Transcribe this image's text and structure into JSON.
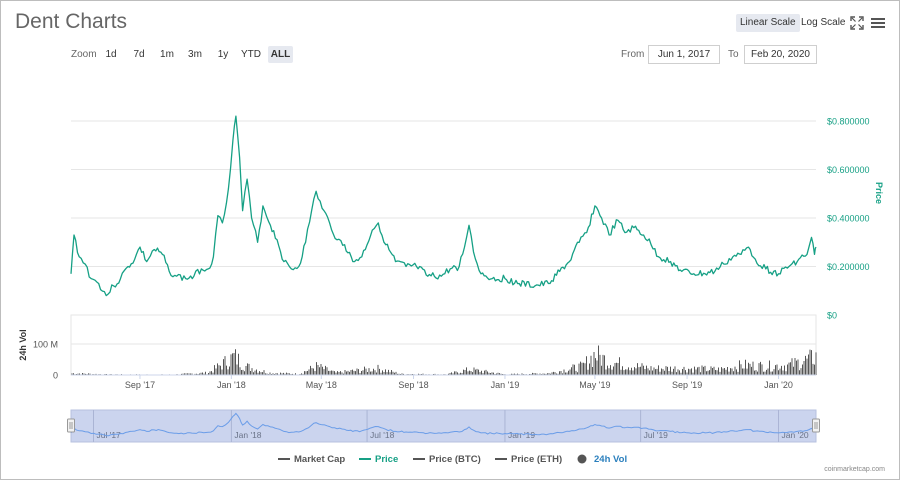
{
  "title": "Dent Charts",
  "scale_buttons": {
    "linear": "Linear Scale",
    "log": "Log Scale",
    "active": "linear"
  },
  "icons": {
    "fullscreen": "fullscreen-icon",
    "menu": "menu-icon"
  },
  "zoom": {
    "label": "Zoom",
    "buttons": [
      "1d",
      "7d",
      "1m",
      "3m",
      "1y",
      "YTD",
      "ALL"
    ],
    "active": "ALL"
  },
  "range": {
    "from_label": "From",
    "from_value": "Jun 1, 2017",
    "to_label": "To",
    "to_value": "Feb 20, 2020"
  },
  "legend": [
    {
      "label": "Market Cap",
      "color": "#555555",
      "marker": "line"
    },
    {
      "label": "Price",
      "color": "#16a085",
      "marker": "line"
    },
    {
      "label": "Price (BTC)",
      "color": "#555555",
      "marker": "line"
    },
    {
      "label": "Price (ETH)",
      "color": "#555555",
      "marker": "line"
    },
    {
      "label": "24h Vol",
      "color": "#555555",
      "marker": "circle"
    }
  ],
  "credit": "coinmarketcap.com",
  "colors": {
    "price": "#16a085",
    "volume": "#555555",
    "navigator_line": "#6b9de8",
    "navigator_fill": "#cbd4ee",
    "grid": "#e6e6e6"
  },
  "chart_data": {
    "type": "line",
    "x_start": "2017-06-01",
    "x_end": "2020-02-20",
    "xaxis_ticks": [
      {
        "label": "Sep '17",
        "date": "2017-09-01"
      },
      {
        "label": "Jan '18",
        "date": "2018-01-01"
      },
      {
        "label": "May '18",
        "date": "2018-05-01"
      },
      {
        "label": "Sep '18",
        "date": "2018-09-01"
      },
      {
        "label": "Jan '19",
        "date": "2019-01-01"
      },
      {
        "label": "May '19",
        "date": "2019-05-01"
      },
      {
        "label": "Sep '19",
        "date": "2019-09-01"
      },
      {
        "label": "Jan '20",
        "date": "2020-01-01"
      }
    ],
    "navigator_ticks": [
      {
        "label": "Jul '17",
        "date": "2017-07-01"
      },
      {
        "label": "Jan '18",
        "date": "2018-01-01"
      },
      {
        "label": "Jul '18",
        "date": "2018-07-01"
      },
      {
        "label": "Jan '19",
        "date": "2019-01-01"
      },
      {
        "label": "Jul '19",
        "date": "2019-07-01"
      },
      {
        "label": "Jan '20",
        "date": "2020-01-01"
      }
    ],
    "price_axis": {
      "label": "Price",
      "min": 0,
      "max": 0.8,
      "ticks": [
        {
          "value": 0,
          "label": "$0"
        },
        {
          "value": 0.2,
          "label": "$0.200000"
        },
        {
          "value": 0.4,
          "label": "$0.400000"
        },
        {
          "value": 0.6,
          "label": "$0.600000"
        },
        {
          "value": 0.8,
          "label": "$0.800000"
        }
      ]
    },
    "volume_axis": {
      "label": "24h Vol",
      "min": 0,
      "max": 100000000,
      "ticks": [
        {
          "value": 0,
          "label": "0"
        },
        {
          "value": 100000000,
          "label": "100 M"
        }
      ]
    },
    "series": [
      {
        "name": "Price",
        "points": [
          [
            "2017-06-01",
            0.17
          ],
          [
            "2017-06-05",
            0.33
          ],
          [
            "2017-06-12",
            0.24
          ],
          [
            "2017-06-20",
            0.21
          ],
          [
            "2017-06-28",
            0.15
          ],
          [
            "2017-07-08",
            0.13
          ],
          [
            "2017-07-18",
            0.08
          ],
          [
            "2017-07-28",
            0.12
          ],
          [
            "2017-08-06",
            0.15
          ],
          [
            "2017-08-16",
            0.2
          ],
          [
            "2017-08-25",
            0.23
          ],
          [
            "2017-09-01",
            0.28
          ],
          [
            "2017-09-10",
            0.22
          ],
          [
            "2017-09-20",
            0.27
          ],
          [
            "2017-10-01",
            0.25
          ],
          [
            "2017-10-10",
            0.18
          ],
          [
            "2017-10-20",
            0.16
          ],
          [
            "2017-11-01",
            0.15
          ],
          [
            "2017-11-12",
            0.16
          ],
          [
            "2017-11-22",
            0.19
          ],
          [
            "2017-12-01",
            0.19
          ],
          [
            "2017-12-08",
            0.24
          ],
          [
            "2017-12-14",
            0.41
          ],
          [
            "2017-12-20",
            0.38
          ],
          [
            "2017-12-28",
            0.52
          ],
          [
            "2018-01-03",
            0.72
          ],
          [
            "2018-01-07",
            0.82
          ],
          [
            "2018-01-12",
            0.65
          ],
          [
            "2018-01-16",
            0.43
          ],
          [
            "2018-01-22",
            0.56
          ],
          [
            "2018-01-28",
            0.4
          ],
          [
            "2018-02-05",
            0.3
          ],
          [
            "2018-02-12",
            0.45
          ],
          [
            "2018-02-22",
            0.37
          ],
          [
            "2018-03-03",
            0.31
          ],
          [
            "2018-03-12",
            0.22
          ],
          [
            "2018-03-22",
            0.19
          ],
          [
            "2018-04-01",
            0.2
          ],
          [
            "2018-04-10",
            0.3
          ],
          [
            "2018-04-18",
            0.43
          ],
          [
            "2018-04-24",
            0.51
          ],
          [
            "2018-05-02",
            0.44
          ],
          [
            "2018-05-12",
            0.38
          ],
          [
            "2018-05-22",
            0.31
          ],
          [
            "2018-06-01",
            0.29
          ],
          [
            "2018-06-12",
            0.22
          ],
          [
            "2018-06-24",
            0.24
          ],
          [
            "2018-07-08",
            0.35
          ],
          [
            "2018-07-16",
            0.38
          ],
          [
            "2018-07-26",
            0.29
          ],
          [
            "2018-08-08",
            0.22
          ],
          [
            "2018-08-22",
            0.2
          ],
          [
            "2018-09-05",
            0.2
          ],
          [
            "2018-09-20",
            0.16
          ],
          [
            "2018-10-08",
            0.16
          ],
          [
            "2018-10-20",
            0.19
          ],
          [
            "2018-11-01",
            0.2
          ],
          [
            "2018-11-08",
            0.28
          ],
          [
            "2018-11-14",
            0.37
          ],
          [
            "2018-11-20",
            0.26
          ],
          [
            "2018-11-30",
            0.17
          ],
          [
            "2018-12-15",
            0.15
          ],
          [
            "2019-01-01",
            0.15
          ],
          [
            "2019-01-20",
            0.13
          ],
          [
            "2019-02-10",
            0.12
          ],
          [
            "2019-02-28",
            0.13
          ],
          [
            "2019-03-15",
            0.18
          ],
          [
            "2019-03-28",
            0.22
          ],
          [
            "2019-04-10",
            0.3
          ],
          [
            "2019-04-20",
            0.34
          ],
          [
            "2019-05-01",
            0.45
          ],
          [
            "2019-05-10",
            0.4
          ],
          [
            "2019-05-20",
            0.33
          ],
          [
            "2019-06-01",
            0.39
          ],
          [
            "2019-06-10",
            0.34
          ],
          [
            "2019-06-22",
            0.36
          ],
          [
            "2019-07-05",
            0.33
          ],
          [
            "2019-07-15",
            0.29
          ],
          [
            "2019-07-25",
            0.24
          ],
          [
            "2019-08-10",
            0.22
          ],
          [
            "2019-08-25",
            0.18
          ],
          [
            "2019-09-10",
            0.17
          ],
          [
            "2019-09-25",
            0.17
          ],
          [
            "2019-10-08",
            0.18
          ],
          [
            "2019-10-20",
            0.21
          ],
          [
            "2019-11-01",
            0.24
          ],
          [
            "2019-11-12",
            0.25
          ],
          [
            "2019-11-22",
            0.28
          ],
          [
            "2019-12-01",
            0.23
          ],
          [
            "2019-12-15",
            0.19
          ],
          [
            "2020-01-01",
            0.17
          ],
          [
            "2020-01-15",
            0.2
          ],
          [
            "2020-01-28",
            0.23
          ],
          [
            "2020-02-08",
            0.25
          ],
          [
            "2020-02-14",
            0.32
          ],
          [
            "2020-02-18",
            0.25
          ],
          [
            "2020-02-20",
            0.28
          ]
        ]
      },
      {
        "name": "24h Vol",
        "points": [
          [
            "2017-06-01",
            8000000
          ],
          [
            "2017-07-15",
            3000000
          ],
          [
            "2017-09-01",
            2000000
          ],
          [
            "2017-10-15",
            2000000
          ],
          [
            "2017-12-01",
            10000000
          ],
          [
            "2017-12-20",
            50000000
          ],
          [
            "2018-01-05",
            85000000
          ],
          [
            "2018-01-20",
            40000000
          ],
          [
            "2018-02-20",
            10000000
          ],
          [
            "2018-04-01",
            5000000
          ],
          [
            "2018-04-25",
            40000000
          ],
          [
            "2018-05-20",
            10000000
          ],
          [
            "2018-07-15",
            30000000
          ],
          [
            "2018-08-15",
            5000000
          ],
          [
            "2018-10-15",
            3000000
          ],
          [
            "2018-11-15",
            25000000
          ],
          [
            "2019-01-01",
            3000000
          ],
          [
            "2019-03-01",
            8000000
          ],
          [
            "2019-04-15",
            40000000
          ],
          [
            "2019-05-01",
            95000000
          ],
          [
            "2019-05-20",
            60000000
          ],
          [
            "2019-06-15",
            45000000
          ],
          [
            "2019-07-15",
            30000000
          ],
          [
            "2019-08-15",
            30000000
          ],
          [
            "2019-09-15",
            28000000
          ],
          [
            "2019-10-15",
            25000000
          ],
          [
            "2019-11-15",
            45000000
          ],
          [
            "2019-12-15",
            40000000
          ],
          [
            "2020-01-15",
            45000000
          ],
          [
            "2020-02-10",
            70000000
          ],
          [
            "2020-02-20",
            85000000
          ]
        ]
      }
    ]
  }
}
